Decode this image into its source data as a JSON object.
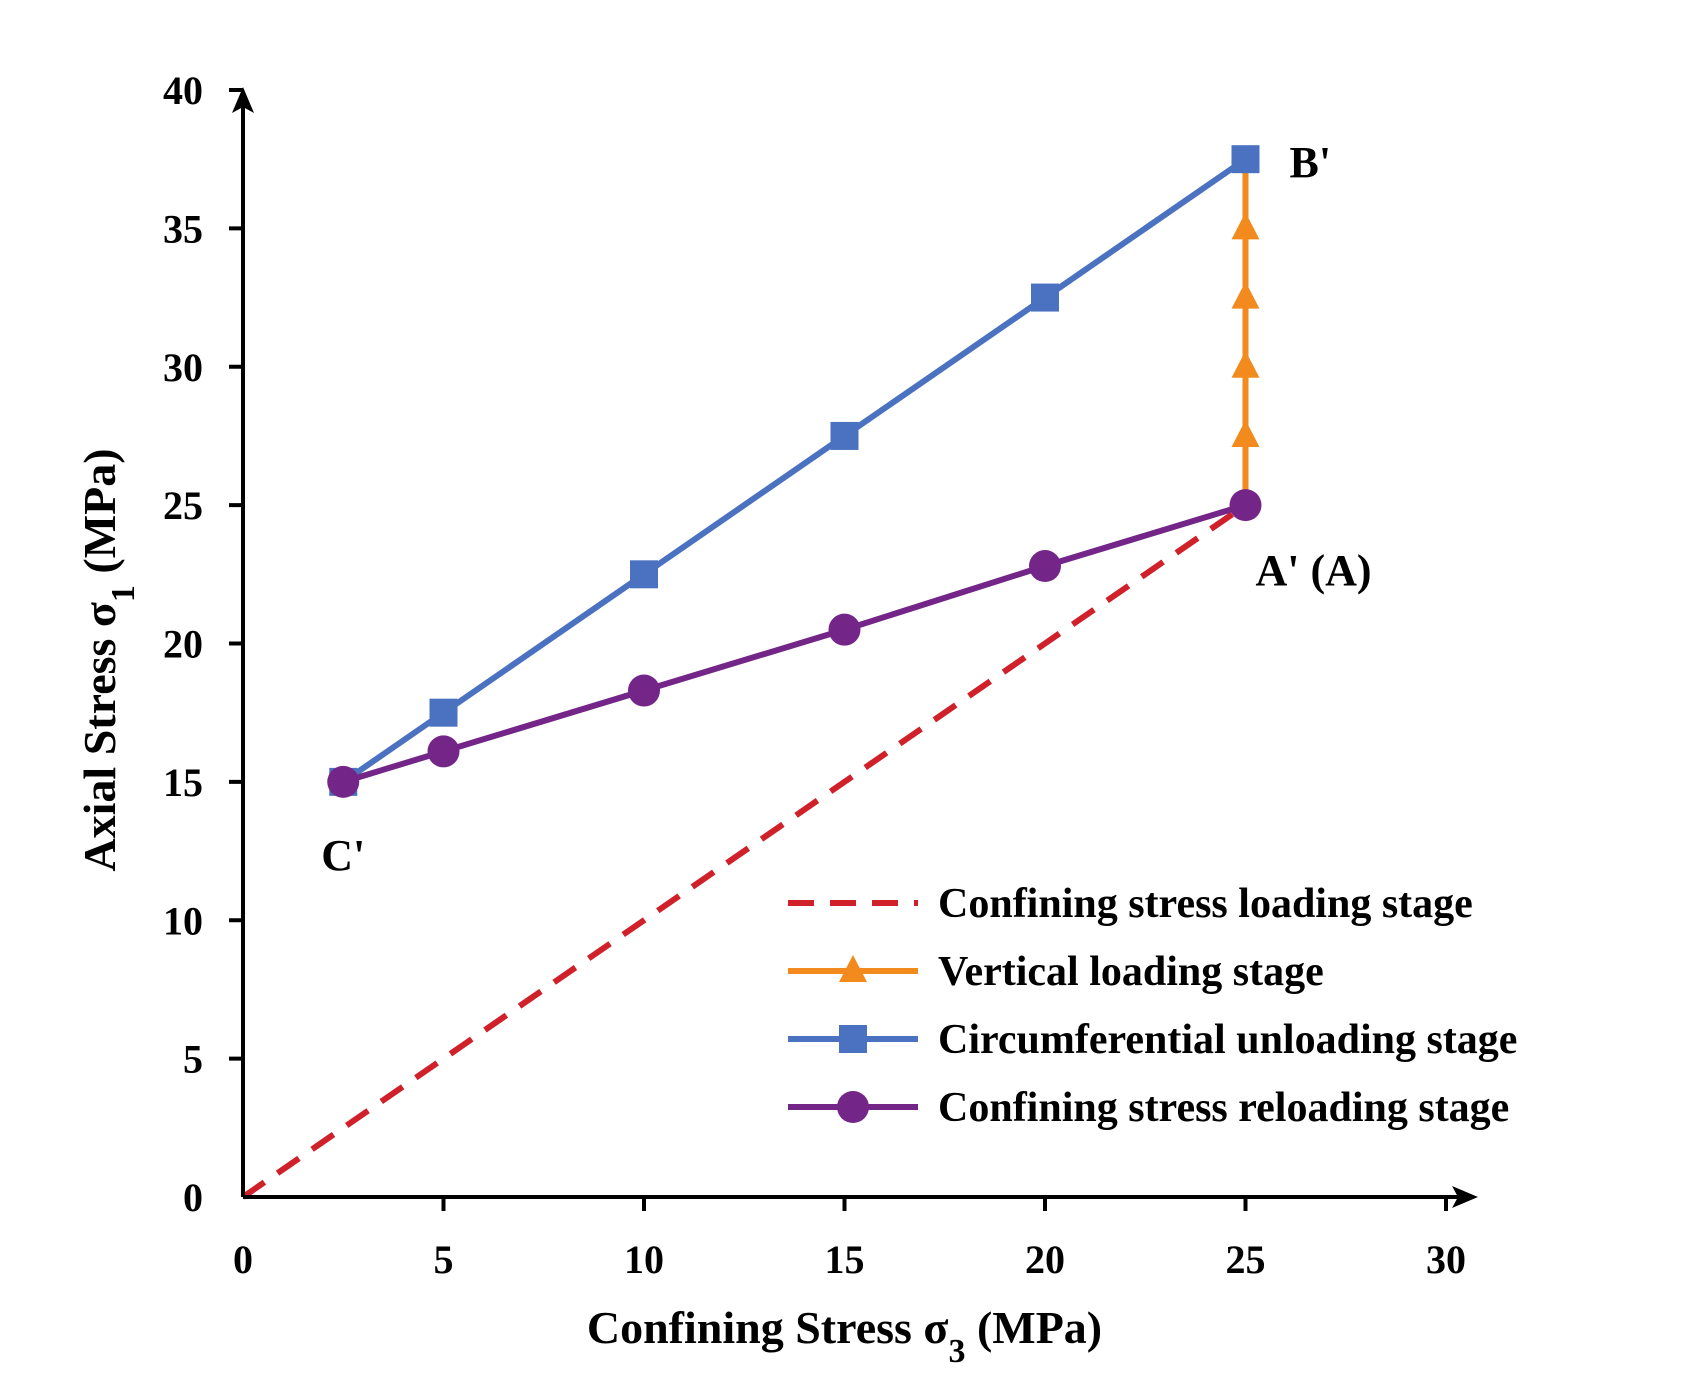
{
  "chart_data": {
    "type": "line",
    "title": "",
    "xlabel": "Confining Stress σ3 (MPa)",
    "xlabel_parts": {
      "prefix": "Confining Stress σ",
      "sub": "3",
      "suffix": " (MPa)"
    },
    "ylabel": "Axial Stress σ1 (MPa)",
    "ylabel_parts": {
      "prefix": "Axial Stress σ",
      "sub": "1",
      "suffix": " (MPa)"
    },
    "xlim": [
      0,
      30
    ],
    "ylim": [
      0,
      40
    ],
    "xticks": [
      0,
      5,
      10,
      15,
      20,
      25,
      30
    ],
    "yticks": [
      0,
      5,
      10,
      15,
      20,
      25,
      30,
      35,
      40
    ],
    "grid": false,
    "legend_position": "bottom-right",
    "series": [
      {
        "name": "Confining stress loading stage",
        "color": "#d0202a",
        "style": "dashed",
        "marker": "none",
        "x": [
          0,
          25
        ],
        "y": [
          0,
          25
        ]
      },
      {
        "name": "Vertical loading stage",
        "color": "#f28a1e",
        "style": "solid",
        "marker": "triangle",
        "x": [
          25,
          25,
          25,
          25,
          25,
          25,
          25
        ],
        "y": [
          25,
          27.5,
          30,
          32.5,
          35,
          37.5,
          37.5
        ],
        "marker_y": [
          27.5,
          30,
          32.5,
          35
        ]
      },
      {
        "name": "Circumferential unloading stage",
        "color": "#4a72c0",
        "style": "solid",
        "marker": "square",
        "x": [
          25,
          20,
          15,
          10,
          5,
          2.5
        ],
        "y": [
          37.5,
          32.5,
          27.5,
          22.5,
          17.5,
          15
        ]
      },
      {
        "name": "Confining stress reloading stage",
        "color": "#742688",
        "style": "solid",
        "marker": "circle",
        "x": [
          2.5,
          5,
          10,
          15,
          20,
          25
        ],
        "y": [
          15,
          16.1,
          18.3,
          20.5,
          22.8,
          25
        ]
      }
    ],
    "annotations": [
      {
        "text": "B'",
        "x": 25,
        "y": 37.5,
        "anchor": "right"
      },
      {
        "text": "A' (A)",
        "x": 25,
        "y": 25,
        "anchor": "below"
      },
      {
        "text": "C'",
        "x": 2.5,
        "y": 15,
        "anchor": "below"
      }
    ]
  }
}
